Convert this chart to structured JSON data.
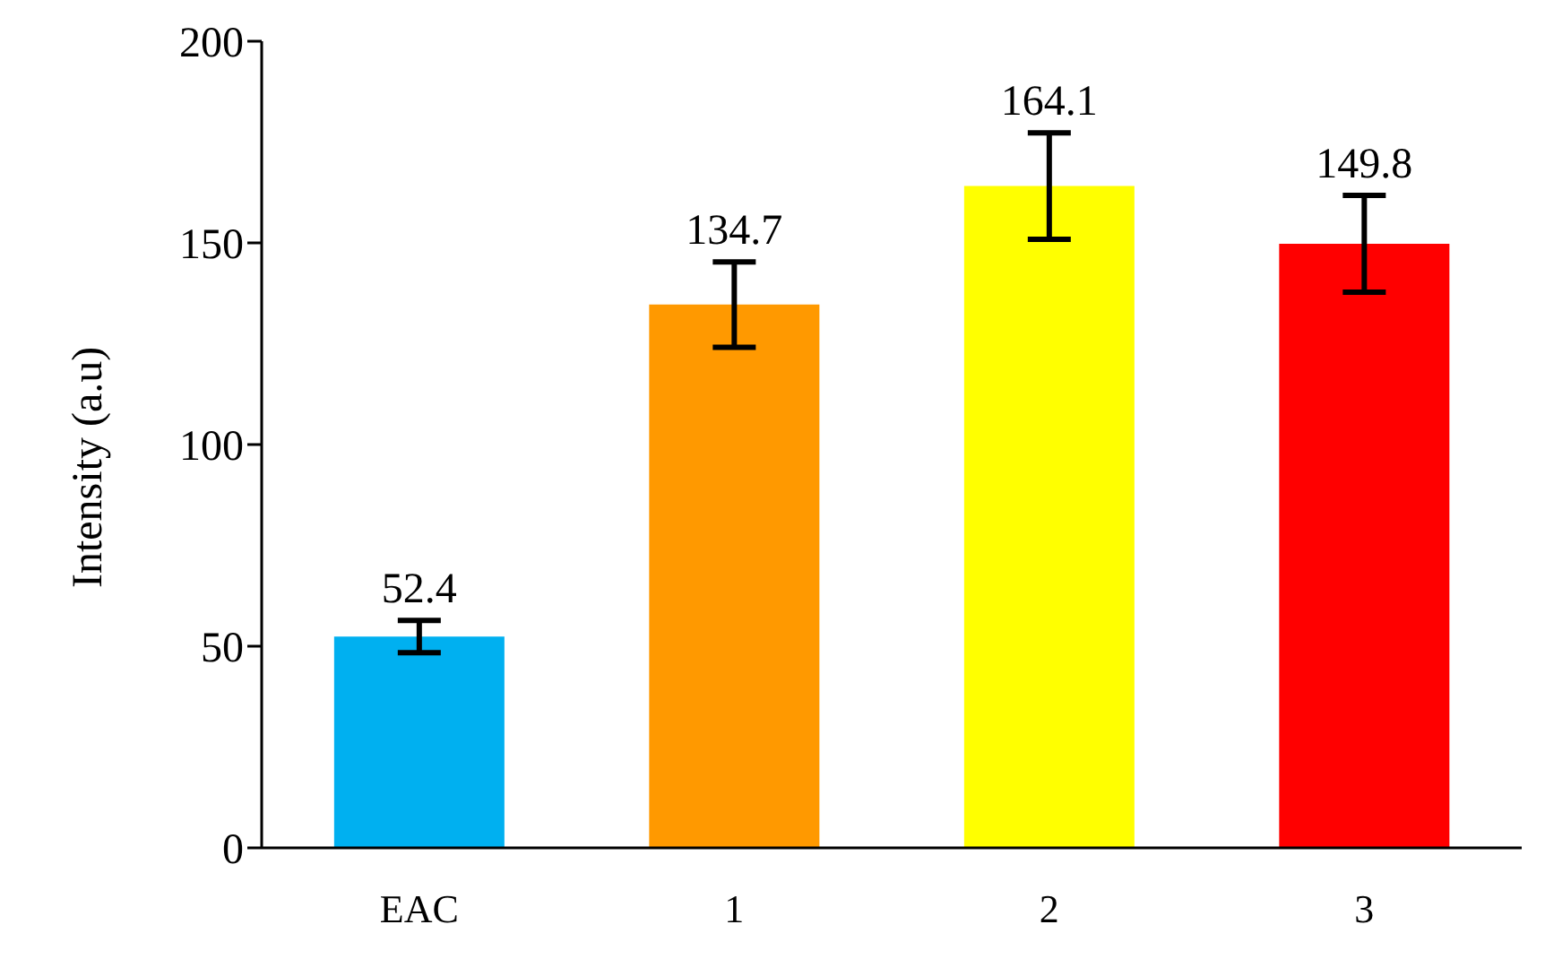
{
  "chart_data": {
    "type": "bar",
    "ylabel": "Intensity (a.u)",
    "categories": [
      "EAC",
      "1",
      "2",
      "3"
    ],
    "values": [
      52.4,
      134.7,
      164.1,
      149.8
    ],
    "colors": [
      "#00b0f0",
      "#ff9900",
      "#ffff00",
      "#ff0000"
    ],
    "errors": [
      4,
      10.6,
      13.2,
      12
    ],
    "ylim": [
      0,
      200
    ],
    "yticks": [
      0,
      50,
      100,
      150,
      200
    ],
    "grid": false,
    "legend": false,
    "data_labels": true
  }
}
